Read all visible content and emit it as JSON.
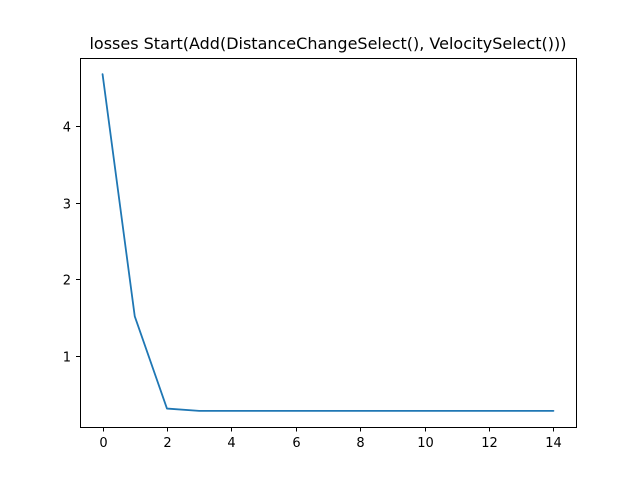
{
  "chart_data": {
    "type": "line",
    "title": "losses Start(Add(DistanceChangeSelect(), VelocitySelect()))",
    "xlabel": "",
    "ylabel": "",
    "x": [
      0,
      1,
      2,
      3,
      4,
      5,
      6,
      7,
      8,
      9,
      10,
      11,
      12,
      13,
      14
    ],
    "series": [
      {
        "values": [
          4.67,
          1.52,
          0.32,
          0.29,
          0.29,
          0.29,
          0.29,
          0.29,
          0.29,
          0.29,
          0.29,
          0.29,
          0.29,
          0.29,
          0.29
        ],
        "color": "#1f77b4"
      }
    ],
    "xlim": [
      -0.7,
      14.7
    ],
    "ylim": [
      0.08,
      4.88
    ],
    "xticks": [
      0,
      2,
      4,
      6,
      8,
      10,
      12,
      14
    ],
    "yticks": [
      1,
      2,
      3,
      4
    ],
    "xtick_labels": [
      "0",
      "2",
      "4",
      "6",
      "8",
      "10",
      "12",
      "14"
    ],
    "ytick_labels": [
      "1",
      "2",
      "3",
      "4"
    ],
    "grid": false,
    "legend": "none"
  }
}
